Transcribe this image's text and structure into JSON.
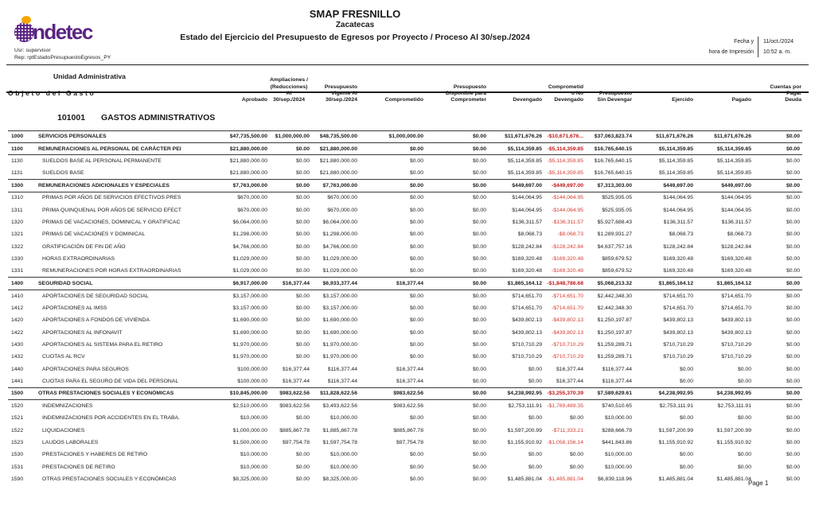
{
  "header": {
    "logo_text": "ndetec",
    "user_line": "Usr: supervisor",
    "report_line": "Rep: rptEstadoPresupuestoEgresos_PY",
    "org": "SMAP FRESNILLO",
    "state": "Zacatecas",
    "report_title": "Estado del Ejercicio del Presupuesto de Egresos por Proyecto / Proceso Al 30/sep./2024",
    "date_label": "Fecha y",
    "time_label": "hora de Impresión",
    "date_value": "11/oct./2024",
    "time_value": "10:52 a. m."
  },
  "table": {
    "header": {
      "unit_line1": "Unidad Administrativa",
      "unit_line2": "Objeto del Gasto",
      "aprobado": "Aprobado",
      "ampliaciones": "Ampliaciones /\n(Reducciones)\nAl\n30/sep./2024",
      "vigente": "Presupuesto\nVigente Al\n30/sep./2024",
      "comprometido": "Comprometido",
      "disponible": "Presupuesto\nDisponible para\nComprometer",
      "devengado": "Devengado",
      "comp_no_devengado": "Comprometid\no No\nDevengado",
      "sin_devengar": "Presupuesto\nSin Devengar",
      "ejercido": "Ejercido",
      "pagado": "Pagado",
      "cuentas": "Cuentas por\nPagar\nDeuda"
    },
    "section": {
      "code": "101001",
      "title": "GASTOS ADMINISTRATIVOS"
    },
    "rows": [
      {
        "code": "1000",
        "label": "SERVICIOS PERSONALES",
        "bold": true,
        "v": [
          "$47,735,500.00",
          "$1,000,000.00",
          "$48,735,500.00",
          "$1,000,000.00",
          "$0.00",
          "$11,671,676.26",
          "-$10,671,676...",
          "$37,063,823.74",
          "$11,671,676.26",
          "$11,671,676.26",
          "$0.00"
        ]
      },
      {
        "code": "1100",
        "label": "REMUNERACIONES AL PERSONAL DE CARÁCTER PEI",
        "bold": true,
        "v": [
          "$21,880,000.00",
          "$0.00",
          "$21,880,000.00",
          "$0.00",
          "$0.00",
          "$5,114,359.85",
          "-$5,114,359.85",
          "$16,765,640.15",
          "$5,114,359.85",
          "$5,114,359.85",
          "$0.00"
        ]
      },
      {
        "code": "1130",
        "label": "SUELDOS BASE AL PERSONAL PERMANENTE",
        "bold": false,
        "v": [
          "$21,880,000.00",
          "$0.00",
          "$21,880,000.00",
          "$0.00",
          "$0.00",
          "$5,114,359.85",
          "-$5,114,359.85",
          "$16,765,640.15",
          "$5,114,359.85",
          "$5,114,359.85",
          "$0.00"
        ]
      },
      {
        "code": "1131",
        "label": "SUELDOS BASE",
        "bold": false,
        "v": [
          "$21,880,000.00",
          "$0.00",
          "$21,880,000.00",
          "$0.00",
          "$0.00",
          "$5,114,359.85",
          "-$5,114,359.85",
          "$16,765,640.15",
          "$5,114,359.85",
          "$5,114,359.85",
          "$0.00"
        ]
      },
      {
        "code": "1300",
        "label": "REMUNERACIONES ADICIONALES Y ESPECIALES",
        "bold": true,
        "v": [
          "$7,763,000.00",
          "$0.00",
          "$7,763,000.00",
          "$0.00",
          "$0.00",
          "$449,697.00",
          "-$449,697.00",
          "$7,313,303.00",
          "$449,697.00",
          "$449,697.00",
          "$0.00"
        ]
      },
      {
        "code": "1310",
        "label": "PRIMAS POR AÑOS DE SERVICIOS EFECTIVOS PRES",
        "bold": false,
        "v": [
          "$670,000.00",
          "$0.00",
          "$670,000.00",
          "$0.00",
          "$0.00",
          "$144,064.95",
          "-$144,064.95",
          "$525,935.05",
          "$144,064.95",
          "$144,064.95",
          "$0.00"
        ]
      },
      {
        "code": "1311",
        "label": "PRIMA QUINQUENAL POR AÑOS DE SERVICIO EFECT",
        "bold": false,
        "v": [
          "$670,000.00",
          "$0.00",
          "$670,000.00",
          "$0.00",
          "$0.00",
          "$144,064.95",
          "-$144,064.95",
          "$525,935.05",
          "$144,064.95",
          "$144,064.95",
          "$0.00"
        ]
      },
      {
        "code": "1320",
        "label": "PRIMAS DE VACACIONES, DOMINICAL Y GRATIFICAC",
        "bold": false,
        "v": [
          "$6,064,000.00",
          "$0.00",
          "$6,064,000.00",
          "$0.00",
          "$0.00",
          "$136,311.57",
          "-$136,311.57",
          "$5,927,688.43",
          "$136,311.57",
          "$136,311.57",
          "$0.00"
        ]
      },
      {
        "code": "1321",
        "label": "PRIMAS DE VACACIONES Y DOMINICAL",
        "bold": false,
        "v": [
          "$1,298,000.00",
          "$0.00",
          "$1,298,000.00",
          "$0.00",
          "$0.00",
          "$8,068.73",
          "-$8,068.73",
          "$1,289,931.27",
          "$8,068.73",
          "$8,068.73",
          "$0.00"
        ]
      },
      {
        "code": "1322",
        "label": "GRATIFICACIÓN DE FIN DE AÑO",
        "bold": false,
        "v": [
          "$4,766,000.00",
          "$0.00",
          "$4,766,000.00",
          "$0.00",
          "$0.00",
          "$128,242.84",
          "-$128,242.84",
          "$4,637,757.16",
          "$128,242.84",
          "$128,242.84",
          "$0.00"
        ]
      },
      {
        "code": "1330",
        "label": "HORAS EXTRAORDINARIAS",
        "bold": false,
        "v": [
          "$1,029,000.00",
          "$0.00",
          "$1,029,000.00",
          "$0.00",
          "$0.00",
          "$169,320.48",
          "-$169,320.48",
          "$859,679.52",
          "$169,320.48",
          "$169,320.48",
          "$0.00"
        ]
      },
      {
        "code": "1331",
        "label": "REMUNERACIONES POR  HORAS EXTRAORDINARIAS",
        "bold": false,
        "v": [
          "$1,029,000.00",
          "$0.00",
          "$1,029,000.00",
          "$0.00",
          "$0.00",
          "$169,320.48",
          "-$169,320.48",
          "$859,679.52",
          "$169,320.48",
          "$169,320.48",
          "$0.00"
        ]
      },
      {
        "code": "1400",
        "label": "SEGURIDAD SOCIAL",
        "bold": true,
        "v": [
          "$6,917,000.00",
          "$16,377.44",
          "$6,933,377.44",
          "$16,377.44",
          "$0.00",
          "$1,865,164.12",
          "-$1,848,786.68",
          "$5,068,213.32",
          "$1,865,164.12",
          "$1,865,164.12",
          "$0.00"
        ]
      },
      {
        "code": "1410",
        "label": "APORTACIONES DE SEGURIDAD SOCIAL",
        "bold": false,
        "v": [
          "$3,157,000.00",
          "$0.00",
          "$3,157,000.00",
          "$0.00",
          "$0.00",
          "$714,651.70",
          "-$714,651.70",
          "$2,442,348.30",
          "$714,651.70",
          "$714,651.70",
          "$0.00"
        ]
      },
      {
        "code": "1412",
        "label": "APORTACIONES AL IMSS",
        "bold": false,
        "v": [
          "$3,157,000.00",
          "$0.00",
          "$3,157,000.00",
          "$0.00",
          "$0.00",
          "$714,651.70",
          "-$714,651.70",
          "$2,442,348.30",
          "$714,651.70",
          "$714,651.70",
          "$0.00"
        ]
      },
      {
        "code": "1420",
        "label": "APORTACIONES A FONDOS DE VIVIENDA",
        "bold": false,
        "v": [
          "$1,690,000.00",
          "$0.00",
          "$1,690,000.00",
          "$0.00",
          "$0.00",
          "$439,802.13",
          "-$439,802.13",
          "$1,250,197.87",
          "$439,802.13",
          "$439,802.13",
          "$0.00"
        ]
      },
      {
        "code": "1422",
        "label": "APORTACIONES AL INFONAVIT",
        "bold": false,
        "v": [
          "$1,690,000.00",
          "$0.00",
          "$1,690,000.00",
          "$0.00",
          "$0.00",
          "$439,802.13",
          "-$439,802.13",
          "$1,250,197.87",
          "$439,802.13",
          "$439,802.13",
          "$0.00"
        ]
      },
      {
        "code": "1430",
        "label": "APORTACIONES AL SISTEMA PARA EL RETIRO",
        "bold": false,
        "v": [
          "$1,970,000.00",
          "$0.00",
          "$1,970,000.00",
          "$0.00",
          "$0.00",
          "$710,710.29",
          "-$710,710.29",
          "$1,259,289.71",
          "$710,710.29",
          "$710,710.29",
          "$0.00"
        ]
      },
      {
        "code": "1432",
        "label": "CUOTAS AL RCV",
        "bold": false,
        "v": [
          "$1,970,000.00",
          "$0.00",
          "$1,970,000.00",
          "$0.00",
          "$0.00",
          "$710,710.29",
          "-$710,710.29",
          "$1,259,289.71",
          "$710,710.29",
          "$710,710.29",
          "$0.00"
        ]
      },
      {
        "code": "1440",
        "label": "APORTACIONES PARA SEGUROS",
        "bold": false,
        "v": [
          "$100,000.00",
          "$16,377.44",
          "$116,377.44",
          "$16,377.44",
          "$0.00",
          "$0.00",
          "$16,377.44",
          "$116,377.44",
          "$0.00",
          "$0.00",
          "$0.00"
        ]
      },
      {
        "code": "1441",
        "label": "CUOTAS PARA EL SEGURO DE VIDA DEL PERSONAL",
        "bold": false,
        "v": [
          "$100,000.00",
          "$16,377.44",
          "$116,377.44",
          "$16,377.44",
          "$0.00",
          "$0.00",
          "$16,377.44",
          "$116,377.44",
          "$0.00",
          "$0.00",
          "$0.00"
        ]
      },
      {
        "code": "1500",
        "label": "OTRAS PRESTACIONES SOCIALES Y ECONÓMICAS",
        "bold": true,
        "v": [
          "$10,845,000.00",
          "$983,622.56",
          "$11,828,622.56",
          "$983,622.56",
          "$0.00",
          "$4,238,992.95",
          "-$3,255,370.39",
          "$7,589,629.61",
          "$4,238,992.95",
          "$4,238,992.95",
          "$0.00"
        ]
      },
      {
        "code": "1520",
        "label": "INDEMNIZACIONES",
        "bold": false,
        "v": [
          "$2,510,000.00",
          "$983,622.56",
          "$3,493,622.56",
          "$983,622.56",
          "$0.00",
          "$2,753,111.91",
          "-$1,769,489.35",
          "$740,510.65",
          "$2,753,111.91",
          "$2,753,111.91",
          "$0.00"
        ]
      },
      {
        "code": "1521",
        "label": "INDEMNIZACIONES POR ACCIDENTES EN EL TRABA.",
        "bold": false,
        "v": [
          "$10,000.00",
          "$0.00",
          "$10,000.00",
          "$0.00",
          "$0.00",
          "$0.00",
          "$0.00",
          "$10,000.00",
          "$0.00",
          "$0.00",
          "$0.00"
        ]
      },
      {
        "code": "1522",
        "label": "LIQUIDACIONES",
        "bold": false,
        "v": [
          "$1,000,000.00",
          "$885,867.78",
          "$1,885,867.78",
          "$885,867.78",
          "$0.00",
          "$1,597,200.99",
          "-$711,333.21",
          "$288,666.79",
          "$1,597,200.99",
          "$1,597,200.99",
          "$0.00"
        ]
      },
      {
        "code": "1523",
        "label": "LAUDOS LABORALES",
        "bold": false,
        "v": [
          "$1,500,000.00",
          "$97,754.78",
          "$1,597,754.78",
          "$97,754.78",
          "$0.00",
          "$1,155,910.92",
          "-$1,058,156.14",
          "$441,843.86",
          "$1,155,910.92",
          "$1,155,910.92",
          "$0.00"
        ]
      },
      {
        "code": "1530",
        "label": "PRESTACIONES Y HABERES DE RETIRO",
        "bold": false,
        "v": [
          "$10,000.00",
          "$0.00",
          "$10,000.00",
          "$0.00",
          "$0.00",
          "$0.00",
          "$0.00",
          "$10,000.00",
          "$0.00",
          "$0.00",
          "$0.00"
        ]
      },
      {
        "code": "1531",
        "label": "PRESTACIONES DE RETIRO",
        "bold": false,
        "v": [
          "$10,000.00",
          "$0.00",
          "$10,000.00",
          "$0.00",
          "$0.00",
          "$0.00",
          "$0.00",
          "$10,000.00",
          "$0.00",
          "$0.00",
          "$0.00"
        ]
      },
      {
        "code": "1590",
        "label": "OTRAS PRESTACIONES SOCIALES Y ECONÓMICAS",
        "bold": false,
        "v": [
          "$8,325,000.00",
          "$0.00",
          "$8,325,000.00",
          "$0.00",
          "$0.00",
          "$1,485,881.04",
          "-$1,485,881.04",
          "$6,839,118.96",
          "$1,485,881.04",
          "$1,485,881.04",
          "$0.00"
        ]
      }
    ]
  },
  "footer": {
    "page_label": "Page 1"
  }
}
